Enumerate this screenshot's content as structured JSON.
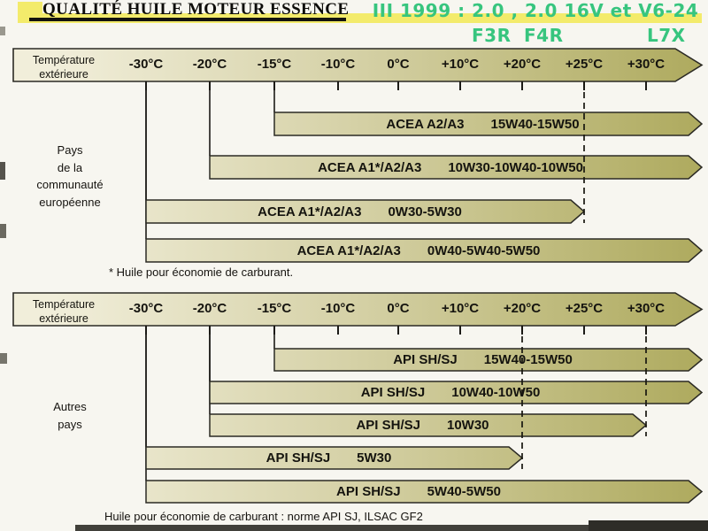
{
  "title": "QUALITÉ HUILE MOTEUR ESSENCE",
  "annotation": {
    "line1": "III 1999 : 2.0 , 2.0 16V et V6-24",
    "engines": [
      "F3R",
      "F4R",
      "L7X"
    ]
  },
  "scale": {
    "label_line1": "Température",
    "label_line2": "extérieure",
    "ticks": [
      "-30°C",
      "-20°C",
      "-15°C",
      "-10°C",
      "0°C",
      "+10°C",
      "+20°C",
      "+25°C",
      "+30°C"
    ]
  },
  "sections": [
    {
      "name": "Pays\nde la\ncommunauté\neuropéenne",
      "footnote": "* Huile pour économie de carburant.",
      "dashed_at": [
        "+25°C"
      ],
      "bars": [
        {
          "label": "ACEA A2/A3",
          "viscosity": "15W40-15W50",
          "from": "-15°C",
          "to": "end"
        },
        {
          "label": "ACEA A1*/A2/A3",
          "viscosity": "10W30-10W40-10W50",
          "from": "-20°C",
          "to": "end"
        },
        {
          "label": "ACEA A1*/A2/A3",
          "viscosity": "0W30-5W30",
          "from": "-30°C",
          "to": "+25°C"
        },
        {
          "label": "ACEA A1*/A2/A3",
          "viscosity": "0W40-5W40-5W50",
          "from": "-30°C",
          "to": "end"
        }
      ]
    },
    {
      "name": "Autres\npays",
      "footnote": "Huile pour économie de carburant : norme API SJ, ILSAC GF2",
      "dashed_at": [
        "+20°C",
        "+30°C"
      ],
      "bars": [
        {
          "label": "API SH/SJ",
          "viscosity": "15W40-15W50",
          "from": "-15°C",
          "to": "end"
        },
        {
          "label": "API SH/SJ",
          "viscosity": "10W40-10W50",
          "from": "-20°C",
          "to": "end"
        },
        {
          "label": "API SH/SJ",
          "viscosity": "10W30",
          "from": "-20°C",
          "to": "+30°C"
        },
        {
          "label": "API SH/SJ",
          "viscosity": "5W30",
          "from": "-30°C",
          "to": "+20°C"
        },
        {
          "label": "API SH/SJ",
          "viscosity": "5W40-5W50",
          "from": "-30°C",
          "to": "end"
        }
      ]
    }
  ],
  "chart_data": [
    {
      "type": "bar",
      "subtype": "horizontal-temperature-range",
      "title": "Pays de la communauté européenne",
      "xlabel": "Température extérieure (°C)",
      "x_ticks": [
        -30,
        -20,
        -15,
        -10,
        0,
        10,
        20,
        25,
        30
      ],
      "bars": [
        {
          "label": "ACEA A2/A3",
          "viscosity": "15W40-15W50",
          "min_c": -15,
          "max_c": null
        },
        {
          "label": "ACEA A1*/A2/A3",
          "viscosity": "10W30-10W40-10W50",
          "min_c": -20,
          "max_c": null
        },
        {
          "label": "ACEA A1*/A2/A3",
          "viscosity": "0W30-5W30",
          "min_c": -30,
          "max_c": 25
        },
        {
          "label": "ACEA A1*/A2/A3",
          "viscosity": "0W40-5W40-5W50",
          "min_c": -30,
          "max_c": null
        }
      ],
      "note": "* Huile pour économie de carburant."
    },
    {
      "type": "bar",
      "subtype": "horizontal-temperature-range",
      "title": "Autres pays",
      "xlabel": "Température extérieure (°C)",
      "x_ticks": [
        -30,
        -20,
        -15,
        -10,
        0,
        10,
        20,
        25,
        30
      ],
      "bars": [
        {
          "label": "API SH/SJ",
          "viscosity": "15W40-15W50",
          "min_c": -15,
          "max_c": null
        },
        {
          "label": "API SH/SJ",
          "viscosity": "10W40-10W50",
          "min_c": -20,
          "max_c": null
        },
        {
          "label": "API SH/SJ",
          "viscosity": "10W30",
          "min_c": -20,
          "max_c": 30
        },
        {
          "label": "API SH/SJ",
          "viscosity": "5W30",
          "min_c": -30,
          "max_c": 20
        },
        {
          "label": "API SH/SJ",
          "viscosity": "5W40-5W50",
          "min_c": -30,
          "max_c": null
        }
      ],
      "note": "Huile pour économie de carburant : norme API SJ, ILSAC GF2"
    }
  ],
  "colors": {
    "bar_light": "#f1eeda",
    "bar_mid": "#d6d2a8",
    "bar_dark": "#aeaa5e",
    "annotation_green": "#37c57e",
    "highlight_yellow": "#f3eb6b"
  }
}
